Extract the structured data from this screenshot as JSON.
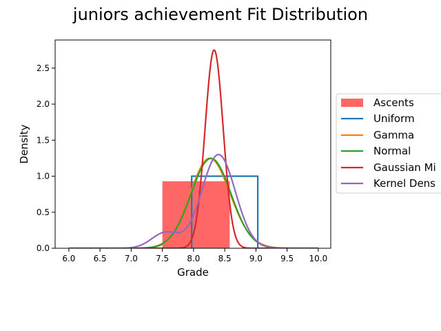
{
  "chart_data": {
    "type": "area",
    "title": "juniors achievement Fit Distribution",
    "xlabel": "Grade",
    "ylabel": "Density",
    "xlim": [
      5.78,
      10.2
    ],
    "ylim": [
      0,
      2.89
    ],
    "x_ticks": [
      6.0,
      6.5,
      7.0,
      7.5,
      8.0,
      8.5,
      9.0,
      9.5,
      10.0
    ],
    "x_tick_labels": [
      "6.0",
      "6.5",
      "7.0",
      "7.5",
      "8.0",
      "8.5",
      "9.0",
      "9.5",
      "10.0"
    ],
    "y_ticks": [
      0.0,
      0.5,
      1.0,
      1.5,
      2.0,
      2.5
    ],
    "y_tick_labels": [
      "0.0",
      "0.5",
      "1.0",
      "1.5",
      "2.0",
      "2.5"
    ],
    "grid": false,
    "legend_placement": "center-right outside",
    "histogram": {
      "name": "Ascents",
      "color": "#ff6666",
      "bins": [
        {
          "x0": 7.5,
          "x1": 8.58,
          "density": 0.93
        }
      ]
    },
    "series": [
      {
        "name": "Uniform",
        "color": "#1f77b4",
        "kind": "uniform",
        "params": {
          "a": 7.97,
          "b": 9.03,
          "height": 1.0
        }
      },
      {
        "name": "Gamma",
        "color": "#ff7f0e",
        "kind": "gamma",
        "params": {
          "mean": 8.28,
          "sd": 0.32,
          "skew": 0.12
        }
      },
      {
        "name": "Normal",
        "color": "#2ca02c",
        "kind": "normal",
        "params": {
          "mean": 8.28,
          "sd": 0.32
        }
      },
      {
        "name": "Gaussian Mixture",
        "legend_label": "Gaussian Mi",
        "color": "#d62728",
        "kind": "normal",
        "params": {
          "mean": 8.33,
          "sd": 0.145
        }
      },
      {
        "name": "Kernel Density",
        "legend_label": "Kernel Dens",
        "color": "#9467bd",
        "kind": "kde",
        "params": {
          "components": [
            {
              "mean": 7.55,
              "sd": 0.22,
              "weight": 0.12
            },
            {
              "mean": 8.4,
              "sd": 0.27,
              "weight": 0.88
            }
          ]
        }
      }
    ]
  }
}
